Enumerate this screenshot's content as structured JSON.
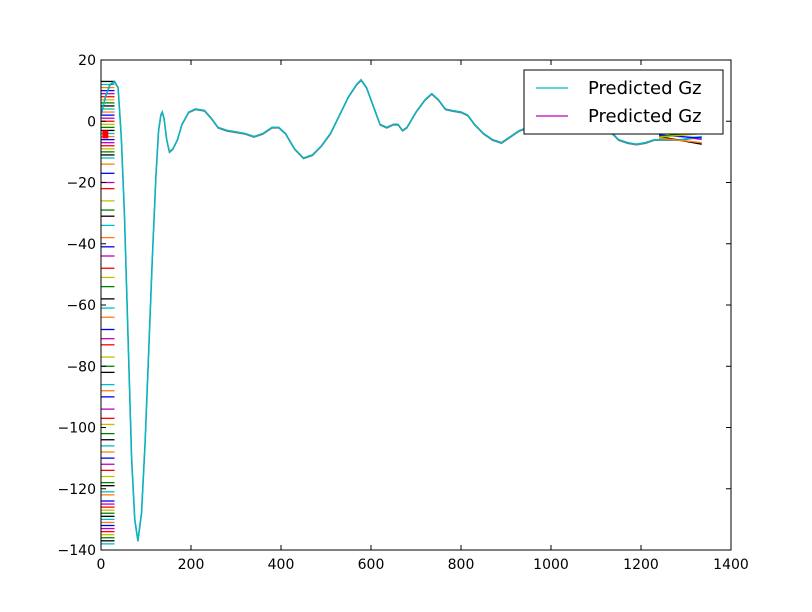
{
  "chart_data": {
    "type": "line",
    "title": "",
    "xlabel": "",
    "ylabel": "",
    "xlim": [
      0,
      1400
    ],
    "ylim": [
      -140,
      20
    ],
    "x_ticks": [
      0,
      200,
      400,
      600,
      800,
      1000,
      1200,
      1400
    ],
    "y_ticks": [
      20,
      0,
      -20,
      -40,
      -60,
      -80,
      -100,
      -120,
      -140
    ],
    "x_tick_labels": [
      "0",
      "200",
      "400",
      "600",
      "800",
      "1000",
      "1200",
      "1400"
    ],
    "y_tick_labels": [
      "20",
      "0",
      "−20",
      "−40",
      "−60",
      "−80",
      "−100",
      "−120",
      "−140"
    ],
    "grid": false,
    "legend_position": "top-right",
    "series": [
      {
        "name": "Predicted Gz",
        "color": "#00bfbf",
        "points": [
          [
            0,
            2
          ],
          [
            10,
            8
          ],
          [
            20,
            12
          ],
          [
            30,
            13
          ],
          [
            38,
            11
          ],
          [
            45,
            -5
          ],
          [
            52,
            -30
          ],
          [
            60,
            -70
          ],
          [
            68,
            -110
          ],
          [
            75,
            -130
          ],
          [
            82,
            -137
          ],
          [
            90,
            -128
          ],
          [
            98,
            -105
          ],
          [
            106,
            -75
          ],
          [
            114,
            -45
          ],
          [
            122,
            -18
          ],
          [
            128,
            -3
          ],
          [
            133,
            2
          ],
          [
            136,
            3
          ],
          [
            140,
            1
          ],
          [
            146,
            -6
          ],
          [
            152,
            -10
          ],
          [
            160,
            -9
          ],
          [
            170,
            -6
          ],
          [
            180,
            -1
          ],
          [
            195,
            3
          ],
          [
            210,
            4
          ],
          [
            230,
            3.5
          ],
          [
            245,
            1
          ],
          [
            260,
            -2
          ],
          [
            280,
            -3
          ],
          [
            300,
            -3.5
          ],
          [
            320,
            -4
          ],
          [
            340,
            -5
          ],
          [
            360,
            -4
          ],
          [
            380,
            -2
          ],
          [
            395,
            -2
          ],
          [
            410,
            -4
          ],
          [
            430,
            -9
          ],
          [
            450,
            -12
          ],
          [
            470,
            -11
          ],
          [
            490,
            -8
          ],
          [
            510,
            -4
          ],
          [
            530,
            2
          ],
          [
            550,
            8
          ],
          [
            568,
            12
          ],
          [
            578,
            13.5
          ],
          [
            590,
            11
          ],
          [
            605,
            5
          ],
          [
            620,
            -1
          ],
          [
            635,
            -2
          ],
          [
            650,
            -1
          ],
          [
            660,
            -1
          ],
          [
            670,
            -3
          ],
          [
            680,
            -2
          ],
          [
            700,
            3
          ],
          [
            720,
            7
          ],
          [
            735,
            9
          ],
          [
            750,
            7
          ],
          [
            765,
            4
          ],
          [
            780,
            3.5
          ],
          [
            800,
            3
          ],
          [
            815,
            2
          ],
          [
            830,
            -1
          ],
          [
            850,
            -4
          ],
          [
            870,
            -6
          ],
          [
            890,
            -7
          ],
          [
            910,
            -5
          ],
          [
            930,
            -3
          ],
          [
            950,
            -2
          ],
          [
            970,
            -1
          ],
          [
            990,
            -0.5
          ],
          [
            1010,
            0
          ],
          [
            1030,
            1
          ],
          [
            1050,
            2
          ],
          [
            1070,
            3
          ],
          [
            1090,
            2
          ],
          [
            1110,
            0
          ],
          [
            1130,
            -3
          ],
          [
            1150,
            -6
          ],
          [
            1170,
            -7
          ],
          [
            1190,
            -7.5
          ],
          [
            1210,
            -7
          ],
          [
            1230,
            -6
          ],
          [
            1250,
            -6
          ],
          [
            1270,
            -6
          ],
          [
            1290,
            -6
          ],
          [
            1310,
            -5.5
          ],
          [
            1335,
            -5
          ]
        ]
      },
      {
        "name": "Predicted Gz",
        "color": "#bf00bf",
        "points": [
          [
            0,
            2
          ],
          [
            10,
            8
          ],
          [
            20,
            12
          ],
          [
            30,
            13
          ],
          [
            38,
            11
          ],
          [
            45,
            -5
          ],
          [
            52,
            -30
          ],
          [
            60,
            -70
          ],
          [
            68,
            -110
          ],
          [
            75,
            -130
          ],
          [
            82,
            -137
          ],
          [
            90,
            -128
          ],
          [
            98,
            -105
          ],
          [
            106,
            -75
          ],
          [
            114,
            -45
          ],
          [
            122,
            -18
          ],
          [
            128,
            -3
          ],
          [
            133,
            2
          ],
          [
            136,
            3
          ],
          [
            140,
            1
          ],
          [
            146,
            -6
          ],
          [
            152,
            -10
          ],
          [
            160,
            -9
          ],
          [
            170,
            -6
          ],
          [
            180,
            -1
          ],
          [
            195,
            3
          ],
          [
            210,
            4
          ],
          [
            230,
            3.5
          ],
          [
            245,
            1
          ],
          [
            260,
            -2
          ],
          [
            280,
            -3
          ],
          [
            300,
            -3.5
          ],
          [
            320,
            -4
          ],
          [
            340,
            -5
          ],
          [
            360,
            -4
          ],
          [
            380,
            -2
          ],
          [
            395,
            -2
          ],
          [
            410,
            -4
          ],
          [
            430,
            -9
          ],
          [
            450,
            -12
          ],
          [
            470,
            -11
          ],
          [
            490,
            -8
          ],
          [
            510,
            -4
          ],
          [
            530,
            2
          ],
          [
            550,
            8
          ],
          [
            568,
            12
          ],
          [
            578,
            13.5
          ],
          [
            590,
            11
          ],
          [
            605,
            5
          ],
          [
            620,
            -1
          ],
          [
            635,
            -2
          ],
          [
            650,
            -1
          ],
          [
            660,
            -1
          ],
          [
            670,
            -3
          ],
          [
            680,
            -2
          ],
          [
            700,
            3
          ],
          [
            720,
            7
          ],
          [
            735,
            9
          ],
          [
            750,
            7
          ],
          [
            765,
            4
          ],
          [
            780,
            3.5
          ],
          [
            800,
            3
          ],
          [
            815,
            2
          ],
          [
            830,
            -1
          ],
          [
            850,
            -4
          ],
          [
            870,
            -6
          ],
          [
            890,
            -7
          ],
          [
            910,
            -5
          ],
          [
            930,
            -3
          ],
          [
            950,
            -2
          ],
          [
            970,
            -1
          ],
          [
            990,
            -0.5
          ],
          [
            1010,
            0
          ],
          [
            1030,
            1
          ],
          [
            1050,
            2
          ],
          [
            1070,
            3
          ],
          [
            1090,
            2
          ],
          [
            1110,
            0
          ],
          [
            1130,
            -3
          ],
          [
            1150,
            -6
          ],
          [
            1170,
            -7
          ],
          [
            1190,
            -7.5
          ],
          [
            1210,
            -7
          ],
          [
            1230,
            -6
          ],
          [
            1250,
            -6
          ],
          [
            1270,
            -6
          ],
          [
            1290,
            -6
          ],
          [
            1310,
            -5.5
          ],
          [
            1335,
            -6
          ]
        ]
      }
    ],
    "left_dashes": {
      "colors": [
        "#000000",
        "#00bfbf",
        "#ff7f0e",
        "#0000ff",
        "#bf00bf",
        "#ff0000",
        "#bfbf00",
        "#008000"
      ],
      "values": [
        13,
        12,
        11,
        10,
        9,
        8,
        7,
        6,
        5,
        4,
        3,
        2,
        1,
        0,
        -1,
        -2,
        -3,
        -4,
        -5,
        -6,
        -7,
        -8,
        -9,
        -10,
        -11,
        -12,
        -14,
        -17,
        -20,
        -22,
        -26,
        -29,
        -31,
        -34,
        -38,
        -41,
        -44,
        -48,
        -51,
        -54,
        -58,
        -61,
        -64,
        -68,
        -71,
        -73,
        -77,
        -80,
        -82,
        -86,
        -88,
        -90,
        -94,
        -97,
        -99,
        -102,
        -104,
        -106,
        -108,
        -110,
        -112,
        -114,
        -116,
        -118,
        -119,
        -121,
        -122,
        -124,
        -125,
        -126,
        -127,
        -128,
        -129,
        -130,
        -131,
        -132,
        -133,
        -134,
        -135,
        -136,
        -137,
        -138
      ]
    },
    "right_band": {
      "x_start": 1240,
      "x_end": 1335,
      "series": [
        {
          "color": "#000000",
          "y_start": -5,
          "y_end": -7.5
        },
        {
          "color": "#ff7f0e",
          "y_start": -5.5,
          "y_end": -7
        },
        {
          "color": "#0000ff",
          "y_start": -4.5,
          "y_end": -5.5
        },
        {
          "color": "#008000",
          "y_start": -5,
          "y_end": -3.5
        },
        {
          "color": "#bfbf00",
          "y_start": -5.2,
          "y_end": -4
        }
      ]
    }
  }
}
